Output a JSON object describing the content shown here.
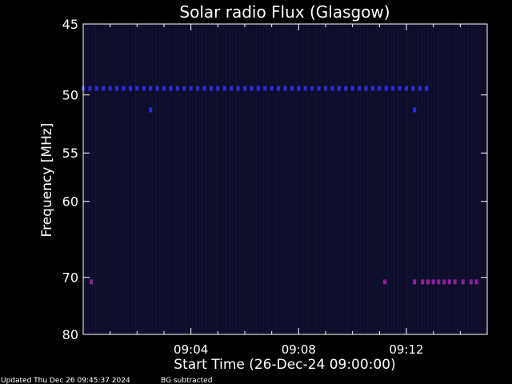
{
  "chart_data": {
    "type": "heatmap",
    "title": "Solar radio Flux (Glasgow)",
    "ylabel": "Frequency [MHz]",
    "xlabel": "Start Time (26-Dec-24 09:00:00)",
    "x_unit": "minutes after 09:00",
    "xlim": [
      0,
      15.0
    ],
    "ylim_reversed": [
      45,
      80
    ],
    "yticks": [
      {
        "value": 45,
        "label": "45"
      },
      {
        "value": 50,
        "label": "50"
      },
      {
        "value": 55,
        "label": "55"
      },
      {
        "value": 60,
        "label": "60"
      },
      {
        "value": 70,
        "label": "70"
      },
      {
        "value": 80,
        "label": "80"
      }
    ],
    "xticks": [
      {
        "value": 4,
        "label": "09:04"
      },
      {
        "value": 8,
        "label": "09:08"
      },
      {
        "value": 12,
        "label": "09:12"
      }
    ],
    "background_color": "#0d0d2a",
    "frame_color": "#ffffff",
    "bands": [
      {
        "freq": 49.5,
        "color": "#2a2ad8",
        "from": 0.0,
        "to": 12.8,
        "step": 0.25
      },
      {
        "freq": 51.2,
        "color": "#2a2ae8",
        "points": [
          2.5,
          12.3
        ]
      },
      {
        "freq": 70.7,
        "color": "#9020a0",
        "points": [
          0.3,
          11.2,
          12.3,
          12.6,
          12.8,
          13.0,
          13.2,
          13.4,
          13.6,
          13.8,
          14.1,
          14.4,
          14.6
        ]
      }
    ],
    "grid": false
  },
  "footer": {
    "updated": "Updated Thu Dec 26 09:45:37 2024",
    "bg": "BG subtracted"
  }
}
